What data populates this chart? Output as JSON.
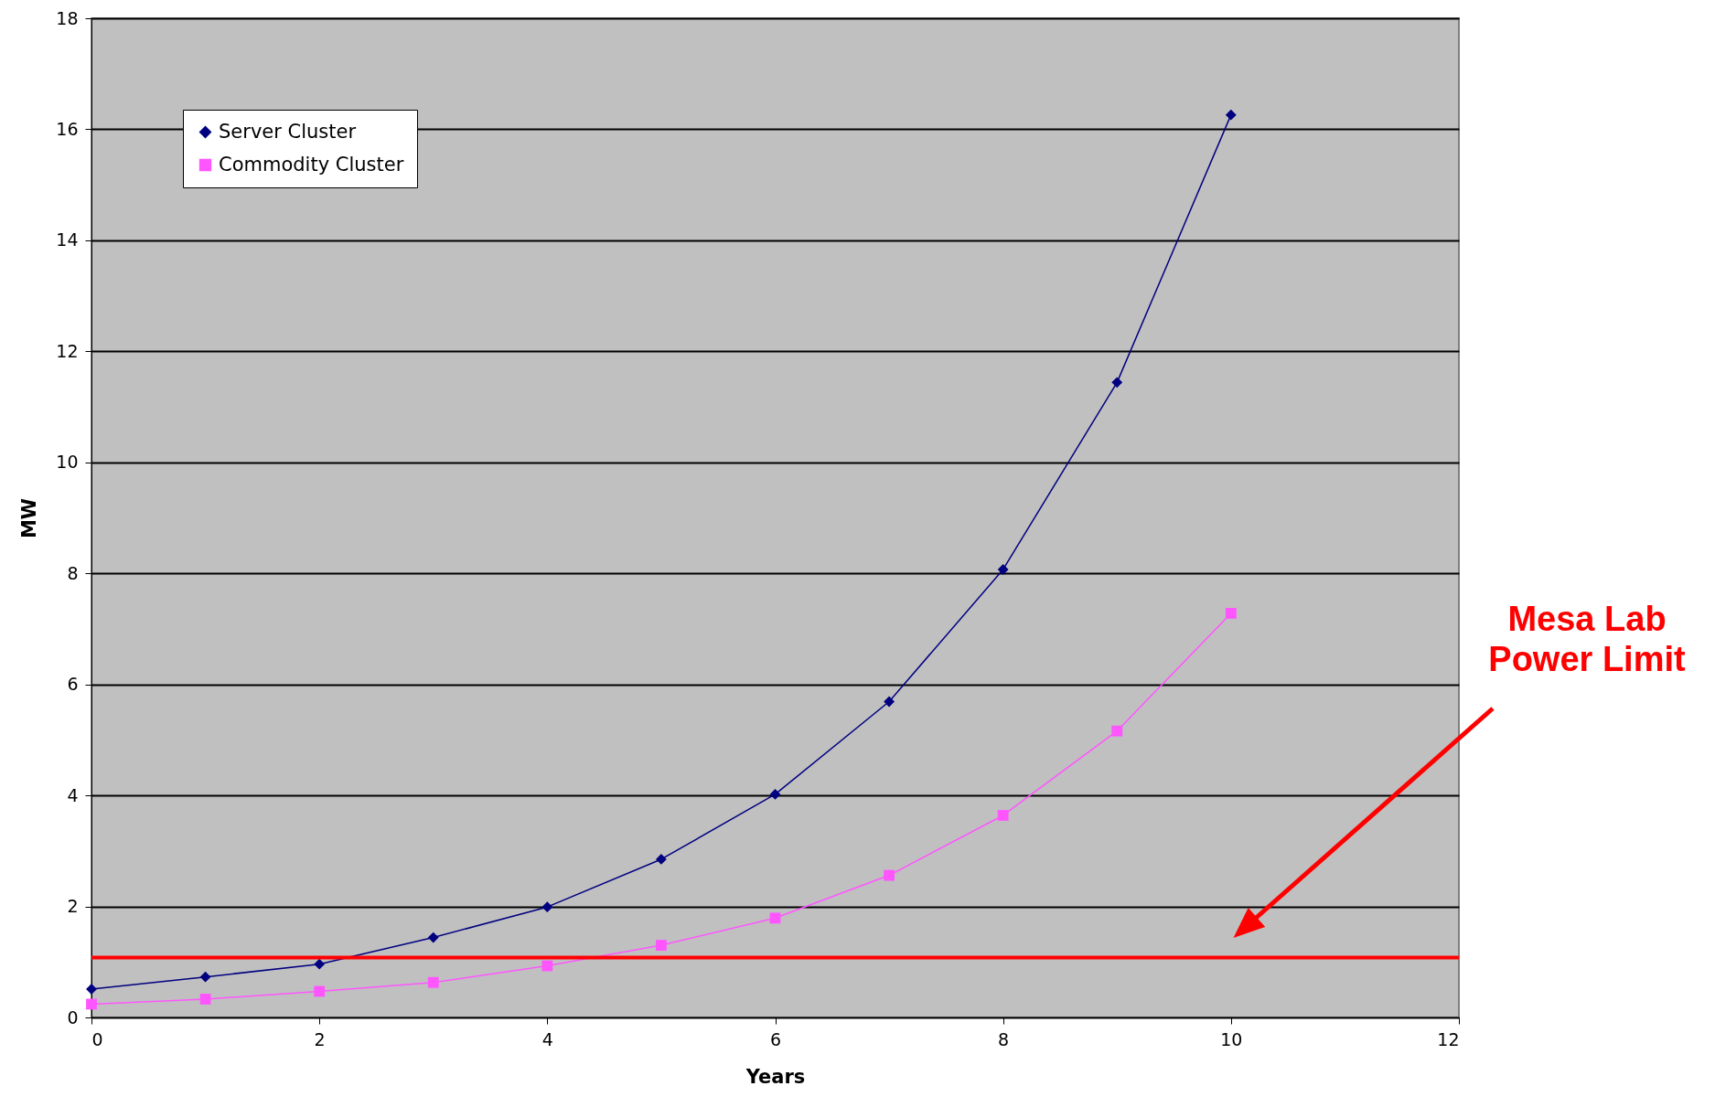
{
  "chart_data": {
    "type": "line",
    "xlabel": "Years",
    "ylabel": "MW",
    "x": [
      0,
      1,
      2,
      3,
      4,
      5,
      6,
      7,
      8,
      9,
      10
    ],
    "series": [
      {
        "name": "Server Cluster",
        "color": "#000080",
        "marker": "diamond",
        "values": [
          0.51,
          0.73,
          0.96,
          1.44,
          1.99,
          2.85,
          4.02,
          5.69,
          8.07,
          11.44,
          16.26
        ]
      },
      {
        "name": "Commodity Cluster",
        "color": "#ff55ff",
        "marker": "square",
        "values": [
          0.24,
          0.33,
          0.47,
          0.63,
          0.93,
          1.3,
          1.79,
          2.56,
          3.64,
          5.16,
          7.28
        ]
      }
    ],
    "xlim": [
      0,
      12
    ],
    "xticks": [
      0,
      2,
      4,
      6,
      8,
      10,
      12
    ],
    "ylim": [
      0,
      18
    ],
    "yticks": [
      0,
      2,
      4,
      6,
      8,
      10,
      12,
      14,
      16,
      18
    ],
    "grid": "y",
    "legend": "top left",
    "line_style": "solid",
    "ref_lines": [
      {
        "axis": "y",
        "value": 1.08,
        "label": "Mesa Lab Power Limit",
        "color": "#ff0000"
      }
    ]
  }
}
